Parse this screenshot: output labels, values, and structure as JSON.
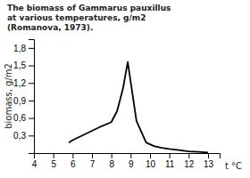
{
  "chart_data": {
    "type": "line",
    "title": "The biomass of Gammarus pauxillus\nat various temperatures, g/m2\n(Romanova, 1973).",
    "xlabel": "t °C",
    "ylabel": "biomass, g/m2",
    "x": [
      5.8,
      6.0,
      6.5,
      7.0,
      7.5,
      8.0,
      8.3,
      8.6,
      8.85,
      9.3,
      9.8,
      10.2,
      10.6,
      11.0,
      11.5,
      12.0,
      12.5,
      13.0
    ],
    "values": [
      0.18,
      0.22,
      0.3,
      0.38,
      0.46,
      0.53,
      0.72,
      1.1,
      1.56,
      0.55,
      0.18,
      0.12,
      0.09,
      0.07,
      0.05,
      0.03,
      0.02,
      0.01
    ],
    "color": "#000000",
    "xlim": [
      4,
      13.6
    ],
    "ylim": [
      0,
      1.95
    ],
    "xticks": [
      4,
      5,
      6,
      7,
      8,
      9,
      10,
      11,
      12,
      13
    ],
    "yticks": [
      {
        "value": 0.3,
        "label": "0,3"
      },
      {
        "value": 0.6,
        "label": "0,6"
      },
      {
        "value": 0.9,
        "label": "0,9"
      },
      {
        "value": 1.2,
        "label": "1,2"
      },
      {
        "value": 1.5,
        "label": "1,5"
      },
      {
        "value": 1.8,
        "label": "1,8"
      }
    ]
  }
}
